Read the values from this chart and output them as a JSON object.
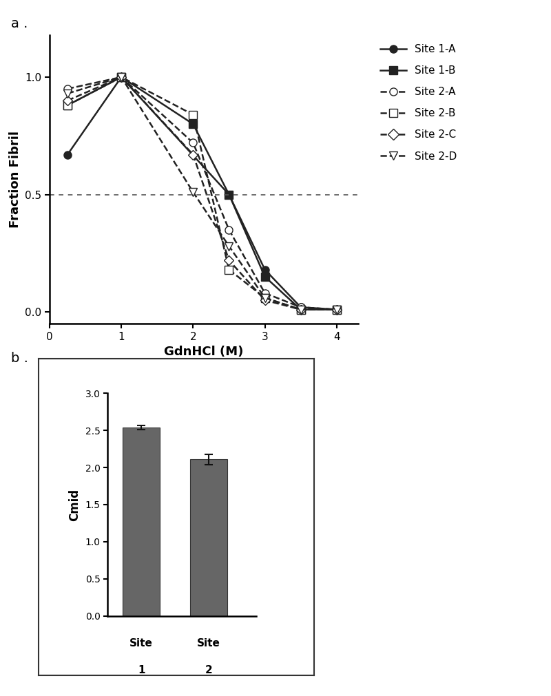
{
  "panel_a": {
    "xlabel": "GdnHCl (M)",
    "ylabel": "Fraction Fibril",
    "xlim": [
      0.0,
      4.3
    ],
    "ylim": [
      -0.05,
      1.18
    ],
    "xticks": [
      0,
      1,
      2,
      3,
      4
    ],
    "yticks": [
      0.0,
      0.5,
      1.0
    ],
    "hline_y": 0.5,
    "series": {
      "Site 1-A": {
        "x": [
          0.25,
          1.0,
          2.5,
          3.0,
          3.5,
          4.0
        ],
        "y": [
          0.67,
          1.0,
          0.5,
          0.18,
          0.02,
          0.01
        ],
        "linestyle": "solid",
        "marker": "o",
        "fillstyle": "full",
        "markersize": 8
      },
      "Site 1-B": {
        "x": [
          0.25,
          1.0,
          2.0,
          2.5,
          3.0,
          3.5,
          4.0
        ],
        "y": [
          0.88,
          1.0,
          0.8,
          0.5,
          0.15,
          0.01,
          0.01
        ],
        "linestyle": "solid",
        "marker": "s",
        "fillstyle": "full",
        "markersize": 8
      },
      "Site 2-A": {
        "x": [
          0.25,
          1.0,
          2.0,
          2.5,
          3.0,
          3.5,
          4.0
        ],
        "y": [
          0.95,
          1.0,
          0.72,
          0.35,
          0.08,
          0.02,
          0.01
        ],
        "linestyle": "dashed",
        "marker": "o",
        "fillstyle": "none",
        "markersize": 8
      },
      "Site 2-B": {
        "x": [
          0.25,
          1.0,
          2.0,
          2.5,
          3.0,
          3.5,
          4.0
        ],
        "y": [
          0.88,
          1.0,
          0.84,
          0.18,
          0.06,
          0.01,
          0.01
        ],
        "linestyle": "dashed",
        "marker": "s",
        "fillstyle": "none",
        "markersize": 8
      },
      "Site 2-C": {
        "x": [
          0.25,
          1.0,
          2.0,
          2.5,
          3.0,
          3.5,
          4.0
        ],
        "y": [
          0.9,
          1.0,
          0.67,
          0.22,
          0.05,
          0.01,
          0.01
        ],
        "linestyle": "dashed",
        "marker": "D",
        "fillstyle": "none",
        "markersize": 7
      },
      "Site 2-D": {
        "x": [
          0.25,
          1.0,
          2.0,
          2.5,
          3.0,
          3.5,
          4.0
        ],
        "y": [
          0.93,
          1.0,
          0.51,
          0.28,
          0.06,
          0.01,
          0.01
        ],
        "linestyle": "dashed",
        "marker": "v",
        "fillstyle": "none",
        "markersize": 8
      }
    }
  },
  "panel_b": {
    "values": [
      2.54,
      2.11
    ],
    "errors": [
      0.03,
      0.07
    ],
    "bar_color": "#666666",
    "ylabel": "Cmid",
    "ylim": [
      0,
      3
    ],
    "yticks": [
      0,
      0.5,
      1.0,
      1.5,
      2.0,
      2.5,
      3.0
    ],
    "bar_width": 0.55,
    "xlim": [
      -0.5,
      1.7
    ]
  },
  "line_color": "#222222",
  "label_fontsize": 14
}
